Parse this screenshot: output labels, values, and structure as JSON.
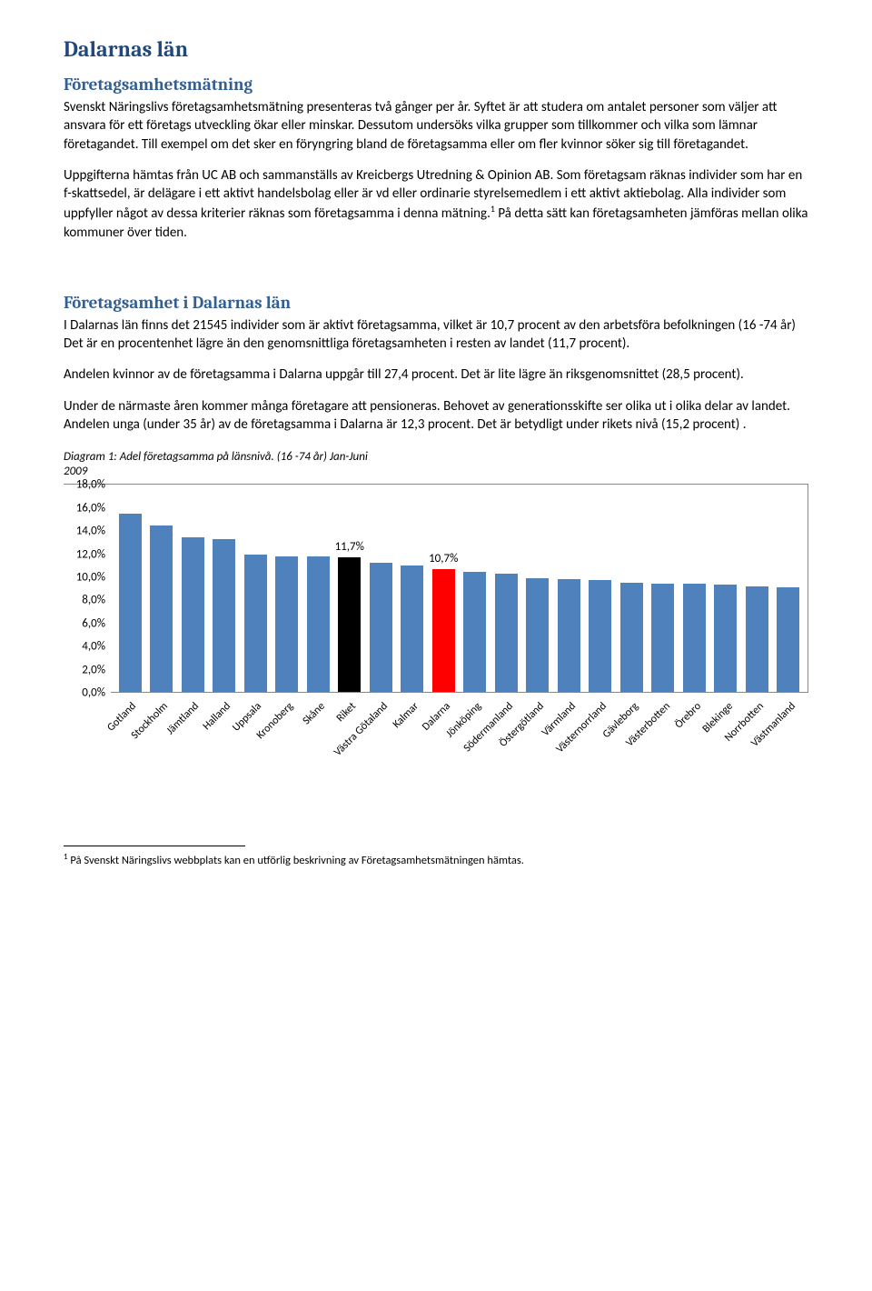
{
  "title": "Dalarnas län",
  "section1": {
    "heading": "Företagsamhetsmätning",
    "p1": "Svenskt Näringslivs företagsamhetsmätning presenteras två gånger per år. Syftet är att studera om antalet personer som väljer att ansvara för ett företags utveckling ökar eller minskar. Dessutom undersöks vilka grupper som tillkommer och vilka som lämnar företagandet. Till exempel om det sker en föryngring bland de företagsamma eller om fler kvinnor söker sig till företagandet.",
    "p2a": "Uppgifterna hämtas från UC AB och sammanställs av Kreicbergs Utredning & Opinion AB. Som företagsam räknas individer som har en f-skattsedel, är delägare i ett aktivt handelsbolag eller är vd eller ordinarie styrelsemedlem i ett aktivt aktiebolag. Alla individer som uppfyller något av dessa kriterier räknas som företagsamma i denna mätning.",
    "p2b": " På detta sätt kan företagsamheten jämföras mellan olika kommuner över tiden."
  },
  "section2": {
    "heading": "Företagsamhet i Dalarnas län",
    "p1": "I Dalarnas län finns det 21545 individer som är aktivt företagsamma, vilket är 10,7 procent av den arbetsföra befolkningen (16 -74 år) Det är en procentenhet lägre än den genomsnittliga företagsamheten i resten av landet (11,7 procent).",
    "p2": "Andelen kvinnor av de företagsamma i Dalarna uppgår till 27,4 procent. Det är lite lägre än riksgenomsnittet (28,5 procent).",
    "p3": "Under de närmaste åren kommer många företagare att pensioneras. Behovet av generationsskifte ser olika ut i olika delar av landet. Andelen unga (under 35 år) av de företagsamma i Dalarna är 12,3 procent. Det är betydligt under rikets nivå (15,2 procent) ."
  },
  "chart": {
    "caption_line1": "Diagram 1: Adel företagsamma på länsnivå. (16 -74 år) Jan-Juni",
    "caption_line2": "2009",
    "ymax": 18.0,
    "ymin": 0.0,
    "ytick_step": 2.0,
    "yticks": [
      "18,0%",
      "16,0%",
      "14,0%",
      "12,0%",
      "10,0%",
      "8,0%",
      "6,0%",
      "4,0%",
      "2,0%",
      "0,0%"
    ],
    "bar_blue": "#4f81bd",
    "bar_black": "#000000",
    "bar_red": "#ff0000",
    "background": "#ffffff",
    "border_color": "#888888",
    "font_size_axis": 13,
    "font_size_xlabel": 12,
    "label_riket": "11,7%",
    "label_dalarna": "10,7%",
    "categories": [
      {
        "name": "Gotland",
        "value": 15.5,
        "color": "#4f81bd"
      },
      {
        "name": "Stockholm",
        "value": 14.5,
        "color": "#4f81bd"
      },
      {
        "name": "Jämtland",
        "value": 13.4,
        "color": "#4f81bd"
      },
      {
        "name": "Halland",
        "value": 13.3,
        "color": "#4f81bd"
      },
      {
        "name": "Uppsala",
        "value": 11.9,
        "color": "#4f81bd"
      },
      {
        "name": "Kronoberg",
        "value": 11.8,
        "color": "#4f81bd"
      },
      {
        "name": "Skåne",
        "value": 11.8,
        "color": "#4f81bd"
      },
      {
        "name": "Riket",
        "value": 11.7,
        "color": "#000000",
        "label": "11,7%"
      },
      {
        "name": "Västra Götaland",
        "value": 11.2,
        "color": "#4f81bd"
      },
      {
        "name": "Kalmar",
        "value": 11.0,
        "color": "#4f81bd"
      },
      {
        "name": "Dalarna",
        "value": 10.7,
        "color": "#ff0000",
        "label": "10,7%"
      },
      {
        "name": "Jönköping",
        "value": 10.4,
        "color": "#4f81bd"
      },
      {
        "name": "Södermanland",
        "value": 10.3,
        "color": "#4f81bd"
      },
      {
        "name": "Östergötland",
        "value": 9.9,
        "color": "#4f81bd"
      },
      {
        "name": "Värmland",
        "value": 9.8,
        "color": "#4f81bd"
      },
      {
        "name": "Västernorrland",
        "value": 9.7,
        "color": "#4f81bd"
      },
      {
        "name": "Gävleborg",
        "value": 9.5,
        "color": "#4f81bd"
      },
      {
        "name": "Västerbotten",
        "value": 9.4,
        "color": "#4f81bd"
      },
      {
        "name": "Örebro",
        "value": 9.4,
        "color": "#4f81bd"
      },
      {
        "name": "Blekinge",
        "value": 9.3,
        "color": "#4f81bd"
      },
      {
        "name": "Norrbotten",
        "value": 9.2,
        "color": "#4f81bd"
      },
      {
        "name": "Västmanland",
        "value": 9.1,
        "color": "#4f81bd"
      }
    ]
  },
  "footnote": {
    "num": "1",
    "text": " På Svenskt Näringslivs webbplats kan en utförlig beskrivning av Företagsamhetsmätningen hämtas."
  }
}
